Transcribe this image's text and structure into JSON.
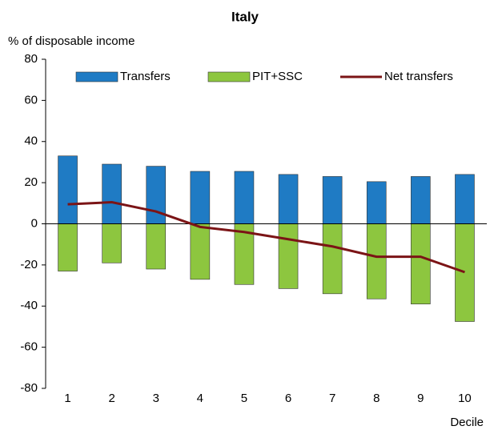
{
  "chart_data": {
    "type": "bar",
    "title": "Italy",
    "y_label": "% of disposable income",
    "x_label": "Decile",
    "categories": [
      "1",
      "2",
      "3",
      "4",
      "5",
      "6",
      "7",
      "8",
      "9",
      "10"
    ],
    "series": [
      {
        "name": "Transfers",
        "type": "bar",
        "color": "#1f7bc4",
        "values": [
          33,
          29,
          28,
          25.5,
          25.5,
          24,
          23,
          20.5,
          23,
          24
        ]
      },
      {
        "name": "PIT+SSC",
        "type": "bar",
        "color": "#8dc63f",
        "values": [
          -23,
          -19,
          -22,
          -27,
          -29.5,
          -31.5,
          -34,
          -36.5,
          -39,
          -47.5
        ]
      },
      {
        "name": "Net transfers",
        "type": "line",
        "color": "#7b1416",
        "values": [
          9.5,
          10.5,
          6,
          -1.5,
          -4,
          -7.5,
          -11,
          -16,
          -16,
          -23.5
        ]
      }
    ],
    "ylim": [
      -80,
      80
    ],
    "yticks": [
      -80,
      -60,
      -40,
      -20,
      0,
      20,
      40,
      60,
      80
    ],
    "legend": "top"
  }
}
